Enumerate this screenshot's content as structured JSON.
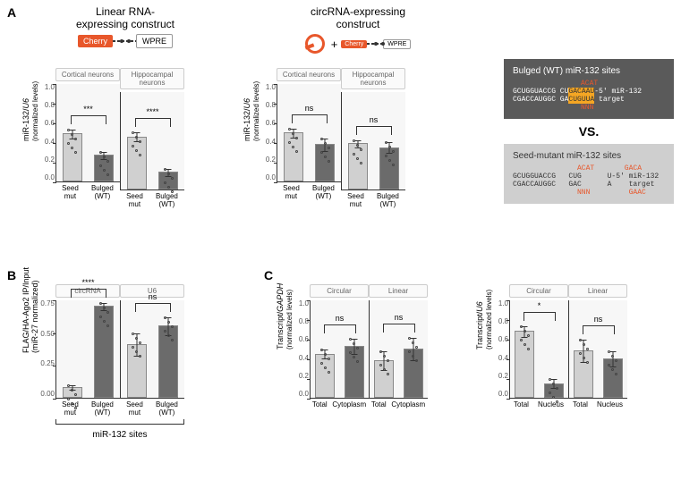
{
  "panelA": {
    "label": "A",
    "leftTitle": "Linear RNA-\nexpressing construct",
    "rightTitle": "circRNA-expressing\nconstruct",
    "yLabel": "miR-132/",
    "yLabelDenom": "U6",
    "yLabelSub": "(normalized levels)",
    "ylim": [
      0.0,
      1.0
    ],
    "yticks": [
      "0.0",
      "0.2",
      "0.4",
      "0.6",
      "0.8",
      "1.0"
    ],
    "xlabels": [
      "Seed\nmut",
      "Bulged\n(WT)"
    ],
    "cherry": "Cherry",
    "wpre": "WPRE",
    "plus": "+",
    "linear": {
      "facets": [
        "Cortical neurons",
        "Hippocampal neurons"
      ],
      "bars": [
        {
          "values": [
            0.49,
            0.27
          ],
          "errors": [
            0.05,
            0.04
          ],
          "sig": "***"
        },
        {
          "values": [
            0.54,
            0.18
          ],
          "errors": [
            0.05,
            0.04
          ],
          "sig": "****"
        }
      ]
    },
    "circular": {
      "facets": [
        "Cortical neurons",
        "Hippocampal neurons"
      ],
      "bars": [
        {
          "values": [
            0.5,
            0.38
          ],
          "errors": [
            0.05,
            0.07
          ],
          "sig": "ns"
        },
        {
          "values": [
            0.47,
            0.43
          ],
          "errors": [
            0.04,
            0.06
          ],
          "sig": "ns"
        }
      ]
    },
    "colors": {
      "light": "#d0d0d0",
      "dark": "#6b6b6b",
      "barBorder": "#888888",
      "bg": "#f7f7f7"
    }
  },
  "seqPanel": {
    "bulged": {
      "title": "Bulged (WT) miR-132 sites",
      "top": "ACAT",
      "line1a": "GCUGGUACCG   CU",
      "line1b": "GACAAU",
      "line1c": "-5' miR-132",
      "line2a": "CGACCAUGGC   GA",
      "line2b": "CUGUUA",
      "line2c": "    target",
      "bot": "NNN"
    },
    "vs": "VS.",
    "mutant": {
      "title": "Seed-mutant miR-132 sites",
      "top": "ACAT       GACA",
      "line1": "GCUGGUACCG   CUG      U-5' miR-132",
      "line2": "CGACCAUGGC   GAC      A    target",
      "bot": "NNN         GAAC"
    }
  },
  "panelB": {
    "label": "B",
    "yLabel": "FLAG/HA-Ago2 IP/Input\n(miR-27 normalized)",
    "facets": [
      "circRNA",
      "U6"
    ],
    "ylim": [
      0.0,
      0.75
    ],
    "yticks": [
      "0.00",
      "0.25",
      "0.50",
      "0.75"
    ],
    "xlabels": [
      "Seed\nmut",
      "Bulged\n(WT)"
    ],
    "bottomLabel": "miR-132 sites",
    "bars": [
      {
        "values": [
          0.08,
          0.7
        ],
        "errors": [
          0.02,
          0.03
        ],
        "sig": "****"
      },
      {
        "values": [
          0.41,
          0.55
        ],
        "errors": [
          0.09,
          0.07
        ],
        "sig": "ns"
      }
    ]
  },
  "panelC": {
    "label": "C",
    "yLabel1": "Transcript/",
    "yLabel1Denom": "GAPDH",
    "yLabel2": "Transcript/",
    "yLabel2Denom": "U6",
    "yLabelSub": "(normalized levels)",
    "ylim": [
      0.0,
      1.0
    ],
    "yticks": [
      "0.0",
      "0.2",
      "0.4",
      "0.6",
      "0.8",
      "1.0"
    ],
    "chart1": {
      "facets": [
        "Circular",
        "Linear"
      ],
      "xlabels": [
        "Total",
        "Cytoplasm"
      ],
      "bars": [
        {
          "values": [
            0.45,
            0.53
          ],
          "errors": [
            0.05,
            0.08
          ],
          "sig": "ns"
        },
        {
          "values": [
            0.38,
            0.5
          ],
          "errors": [
            0.1,
            0.12
          ],
          "sig": "ns"
        }
      ]
    },
    "chart2": {
      "facets": [
        "Circular",
        "Linear"
      ],
      "xlabels": [
        "Total",
        "Nucleus"
      ],
      "bars": [
        {
          "values": [
            0.68,
            0.15
          ],
          "errors": [
            0.06,
            0.05
          ],
          "sig": "*"
        },
        {
          "values": [
            0.48,
            0.4
          ],
          "errors": [
            0.12,
            0.08
          ],
          "sig": "ns"
        }
      ]
    }
  },
  "style": {
    "plotHeightA": 110,
    "plotWidthA": 72,
    "barWidth": 22,
    "plotHeightB": 110,
    "plotWidthB": 72,
    "plotHeightC": 110,
    "plotWidthC": 66
  }
}
